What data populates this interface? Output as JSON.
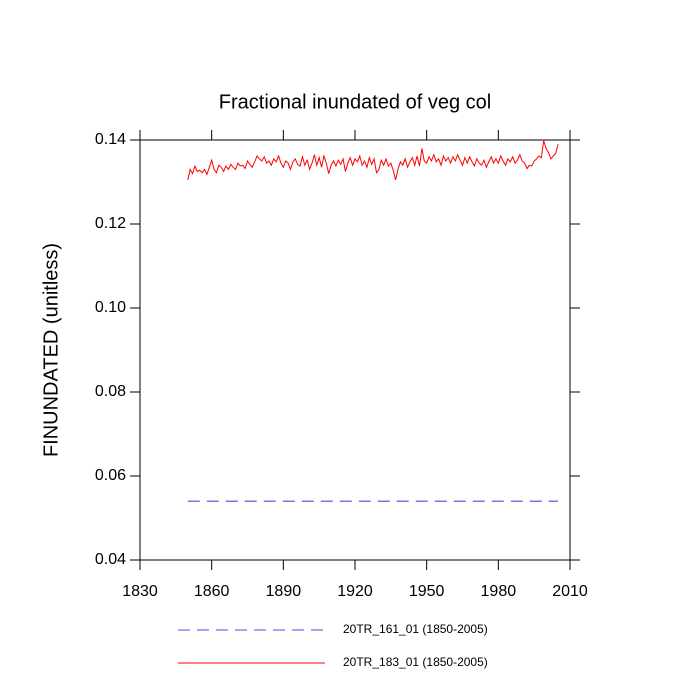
{
  "chart_data": {
    "type": "line",
    "title": "Fractional inundated of veg col",
    "y_label": "FINUNDATED  (unitless)",
    "x": [
      1850,
      1851,
      1852,
      1853,
      1854,
      1855,
      1856,
      1857,
      1858,
      1859,
      1860,
      1861,
      1862,
      1863,
      1864,
      1865,
      1866,
      1867,
      1868,
      1869,
      1870,
      1871,
      1872,
      1873,
      1874,
      1875,
      1876,
      1877,
      1878,
      1879,
      1880,
      1881,
      1882,
      1883,
      1884,
      1885,
      1886,
      1887,
      1888,
      1889,
      1890,
      1891,
      1892,
      1893,
      1894,
      1895,
      1896,
      1897,
      1898,
      1899,
      1900,
      1901,
      1902,
      1903,
      1904,
      1905,
      1906,
      1907,
      1908,
      1909,
      1910,
      1911,
      1912,
      1913,
      1914,
      1915,
      1916,
      1917,
      1918,
      1919,
      1920,
      1921,
      1922,
      1923,
      1924,
      1925,
      1926,
      1927,
      1928,
      1929,
      1930,
      1931,
      1932,
      1933,
      1934,
      1935,
      1936,
      1937,
      1938,
      1939,
      1940,
      1941,
      1942,
      1943,
      1944,
      1945,
      1946,
      1947,
      1948,
      1949,
      1950,
      1951,
      1952,
      1953,
      1954,
      1955,
      1956,
      1957,
      1958,
      1959,
      1960,
      1961,
      1962,
      1963,
      1964,
      1965,
      1966,
      1967,
      1968,
      1969,
      1970,
      1971,
      1972,
      1973,
      1974,
      1975,
      1976,
      1977,
      1978,
      1979,
      1980,
      1981,
      1982,
      1983,
      1984,
      1985,
      1986,
      1987,
      1988,
      1989,
      1990,
      1991,
      1992,
      1993,
      1994,
      1995,
      1996,
      1997,
      1998,
      1999,
      2000,
      2001,
      2002,
      2003,
      2004,
      2005
    ],
    "series": [
      {
        "name": "20TR_161_01 (1850-2005)",
        "color": "#4b4bd8",
        "dashed": true,
        "values": [
          0.054,
          0.054,
          0.054,
          0.054,
          0.054,
          0.054,
          0.054,
          0.054,
          0.054,
          0.054,
          0.054,
          0.054,
          0.054,
          0.054,
          0.054,
          0.054,
          0.054,
          0.054,
          0.054,
          0.054,
          0.054,
          0.054,
          0.054,
          0.054,
          0.054,
          0.054,
          0.054,
          0.054,
          0.054,
          0.054,
          0.054,
          0.054,
          0.054,
          0.054,
          0.054,
          0.054,
          0.054,
          0.054,
          0.054,
          0.054,
          0.054,
          0.054,
          0.054,
          0.054,
          0.054,
          0.054,
          0.054,
          0.054,
          0.054,
          0.054,
          0.054,
          0.054,
          0.054,
          0.054,
          0.054,
          0.054,
          0.054,
          0.054,
          0.054,
          0.054,
          0.054,
          0.054,
          0.054,
          0.054,
          0.054,
          0.054,
          0.054,
          0.054,
          0.054,
          0.054,
          0.054,
          0.054,
          0.054,
          0.054,
          0.054,
          0.054,
          0.054,
          0.054,
          0.054,
          0.054,
          0.054,
          0.054,
          0.054,
          0.054,
          0.054,
          0.054,
          0.054,
          0.054,
          0.054,
          0.054,
          0.054,
          0.054,
          0.054,
          0.054,
          0.054,
          0.054,
          0.054,
          0.054,
          0.054,
          0.054,
          0.054,
          0.054,
          0.054,
          0.054,
          0.054,
          0.054,
          0.054,
          0.054,
          0.054,
          0.054,
          0.054,
          0.054,
          0.054,
          0.054,
          0.054,
          0.054,
          0.054,
          0.054,
          0.054,
          0.054,
          0.054,
          0.054,
          0.054,
          0.054,
          0.054,
          0.054,
          0.054,
          0.054,
          0.054,
          0.054,
          0.054,
          0.054,
          0.054,
          0.054,
          0.054,
          0.054,
          0.054,
          0.054,
          0.054,
          0.054,
          0.054,
          0.054,
          0.054,
          0.054,
          0.054,
          0.054,
          0.054,
          0.054,
          0.054,
          0.054,
          0.054,
          0.054,
          0.054,
          0.054,
          0.054,
          0.054
        ]
      },
      {
        "name": "20TR_183_01 (1850-2005)",
        "color": "#ff0000",
        "dashed": false,
        "values": [
          0.1305,
          0.133,
          0.132,
          0.1338,
          0.1325,
          0.1328,
          0.1322,
          0.133,
          0.1318,
          0.1335,
          0.1352,
          0.133,
          0.1322,
          0.134,
          0.1335,
          0.1325,
          0.1338,
          0.133,
          0.1342,
          0.1335,
          0.133,
          0.1345,
          0.1338,
          0.134,
          0.1332,
          0.135,
          0.1342,
          0.1335,
          0.1348,
          0.1362,
          0.1355,
          0.135,
          0.136,
          0.1345,
          0.135,
          0.134,
          0.1355,
          0.1348,
          0.1362,
          0.1345,
          0.1335,
          0.135,
          0.1345,
          0.133,
          0.1348,
          0.1355,
          0.1342,
          0.1338,
          0.136,
          0.134,
          0.1352,
          0.133,
          0.1345,
          0.1365,
          0.134,
          0.1358,
          0.1335,
          0.1362,
          0.1345,
          0.132,
          0.134,
          0.135,
          0.1338,
          0.1352,
          0.1342,
          0.1355,
          0.1325,
          0.1345,
          0.1358,
          0.134,
          0.1355,
          0.1348,
          0.1362,
          0.134,
          0.135,
          0.1335,
          0.1358,
          0.1342,
          0.1355,
          0.1322,
          0.133,
          0.1352,
          0.134,
          0.1355,
          0.1338,
          0.1345,
          0.1328,
          0.1305,
          0.133,
          0.1348,
          0.134,
          0.1355,
          0.1335,
          0.1348,
          0.1358,
          0.134,
          0.1362,
          0.1338,
          0.138,
          0.135,
          0.1345,
          0.136,
          0.135,
          0.1365,
          0.1348,
          0.1355,
          0.134,
          0.1362,
          0.135,
          0.1358,
          0.1345,
          0.136,
          0.135,
          0.1365,
          0.1352,
          0.134,
          0.1358,
          0.1345,
          0.136,
          0.1348,
          0.1338,
          0.1355,
          0.1345,
          0.134,
          0.1352,
          0.1335,
          0.1348,
          0.136,
          0.1345,
          0.1355,
          0.1345,
          0.1362,
          0.135,
          0.134,
          0.1355,
          0.1348,
          0.136,
          0.1345,
          0.1352,
          0.1365,
          0.135,
          0.1345,
          0.1332,
          0.134,
          0.1338,
          0.135,
          0.1355,
          0.1362,
          0.1358,
          0.1398,
          0.138,
          0.137,
          0.1355,
          0.1362,
          0.1368,
          0.139
        ]
      }
    ],
    "xlim": [
      1830,
      2010
    ],
    "xticks": [
      1830,
      1860,
      1890,
      1920,
      1950,
      1980,
      2010
    ],
    "ylim": [
      0.04,
      0.14
    ],
    "yticks": [
      0.04,
      0.06,
      0.08,
      {
        "value": 0.1,
        "label": "0.10"
      },
      0.12,
      0.14
    ]
  }
}
